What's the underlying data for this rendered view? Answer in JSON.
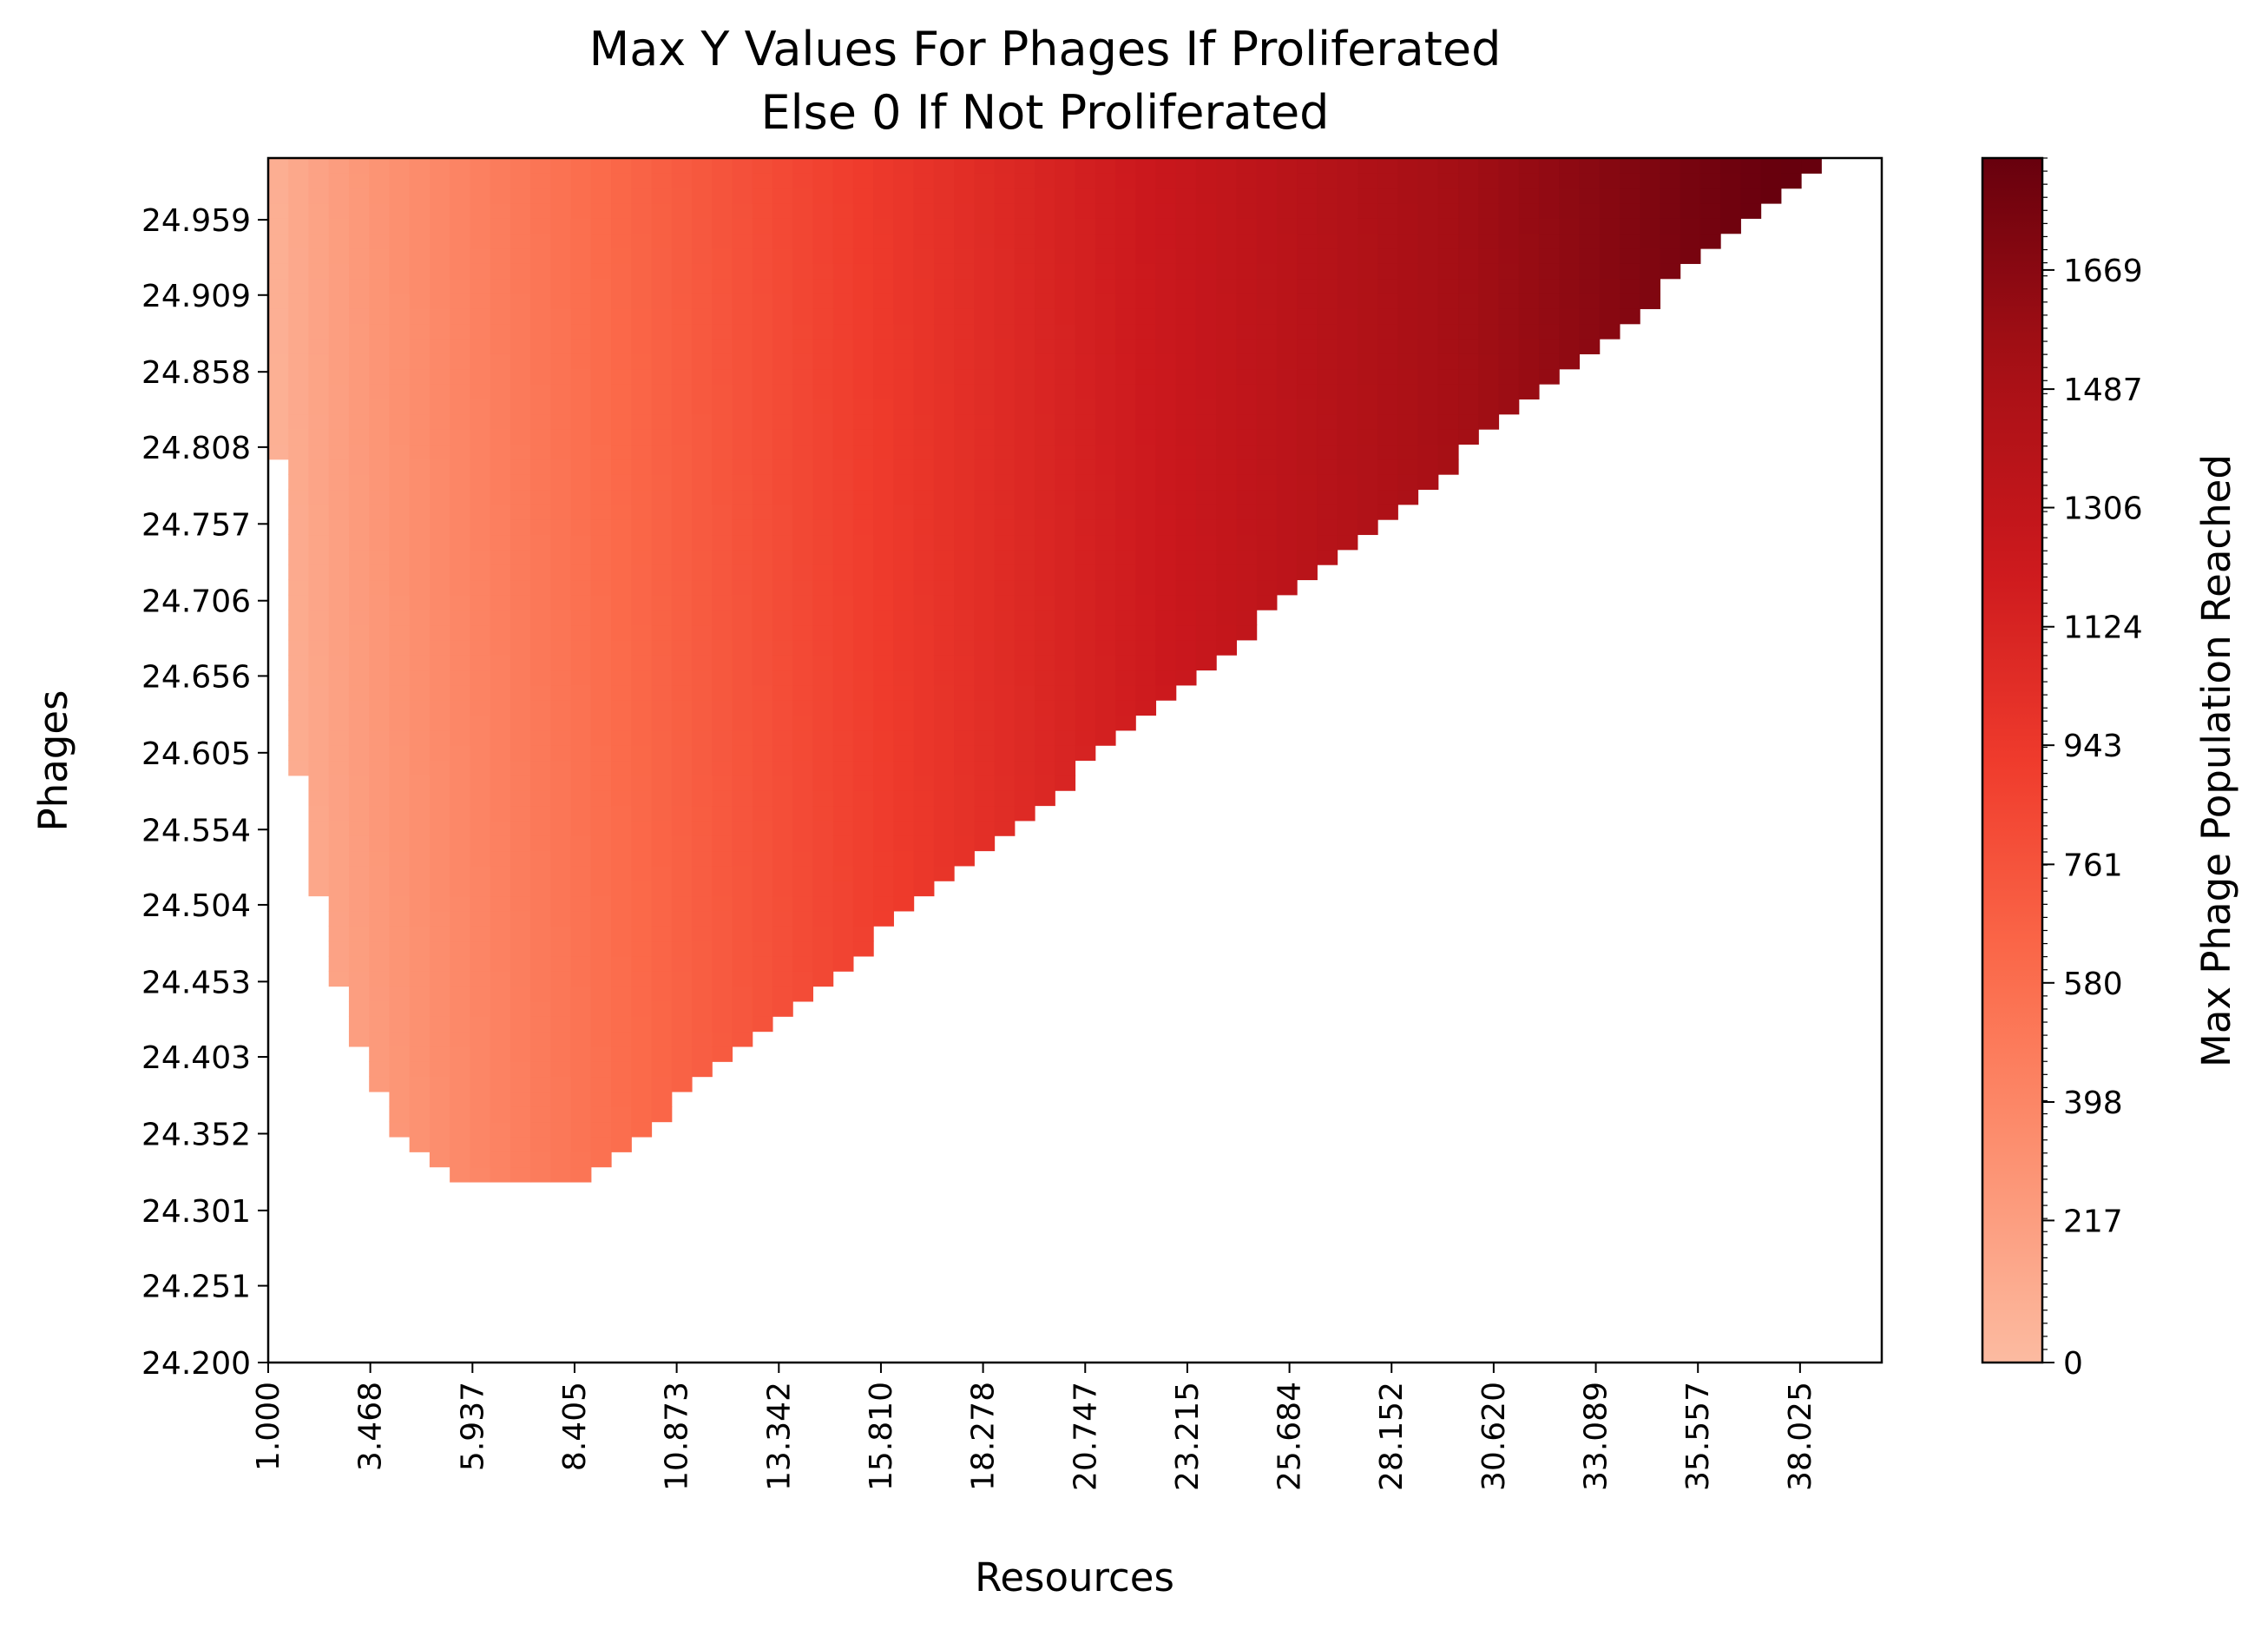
{
  "chart_data": {
    "type": "heatmap",
    "title": "Max Y Values For Phages If Proliferated",
    "subtitle": "Else 0 If Not Proliferated",
    "xlabel": "Resources",
    "ylabel": "Phages",
    "colorbar_label": "Max Phage Population Reached",
    "colormap": "Reds",
    "colormap_stops": [
      "#fcbba1",
      "#fc9272",
      "#fb6a4a",
      "#ef3b2c",
      "#cb181d",
      "#a50f15",
      "#67000d"
    ],
    "empty_color": "#ffffff",
    "x_tick_labels": [
      "1.000",
      "3.468",
      "5.937",
      "8.405",
      "10.873",
      "13.342",
      "15.810",
      "18.278",
      "20.747",
      "23.215",
      "25.684",
      "28.152",
      "30.620",
      "33.089",
      "35.557",
      "38.025"
    ],
    "y_tick_labels": [
      "24.200",
      "24.251",
      "24.301",
      "24.352",
      "24.403",
      "24.453",
      "24.504",
      "24.554",
      "24.605",
      "24.656",
      "24.706",
      "24.757",
      "24.808",
      "24.858",
      "24.909",
      "24.959"
    ],
    "colorbar_tick_labels": [
      "0",
      "217",
      "398",
      "580",
      "761",
      "943",
      "1124",
      "1306",
      "1487",
      "1669"
    ],
    "x_range": [
      1.0,
      40.0
    ],
    "y_range": [
      24.2,
      25.0
    ],
    "value_range": [
      0,
      1840
    ],
    "grid": false,
    "summary": {
      "proliferation_region": "triangular region above a boundary rising from about (5.9, 24.32) to about (38.5, 25.0)",
      "trend": "max phage population increases with resources, from about 100 near Resources 1 to about 1840 near Resources 38"
    }
  }
}
